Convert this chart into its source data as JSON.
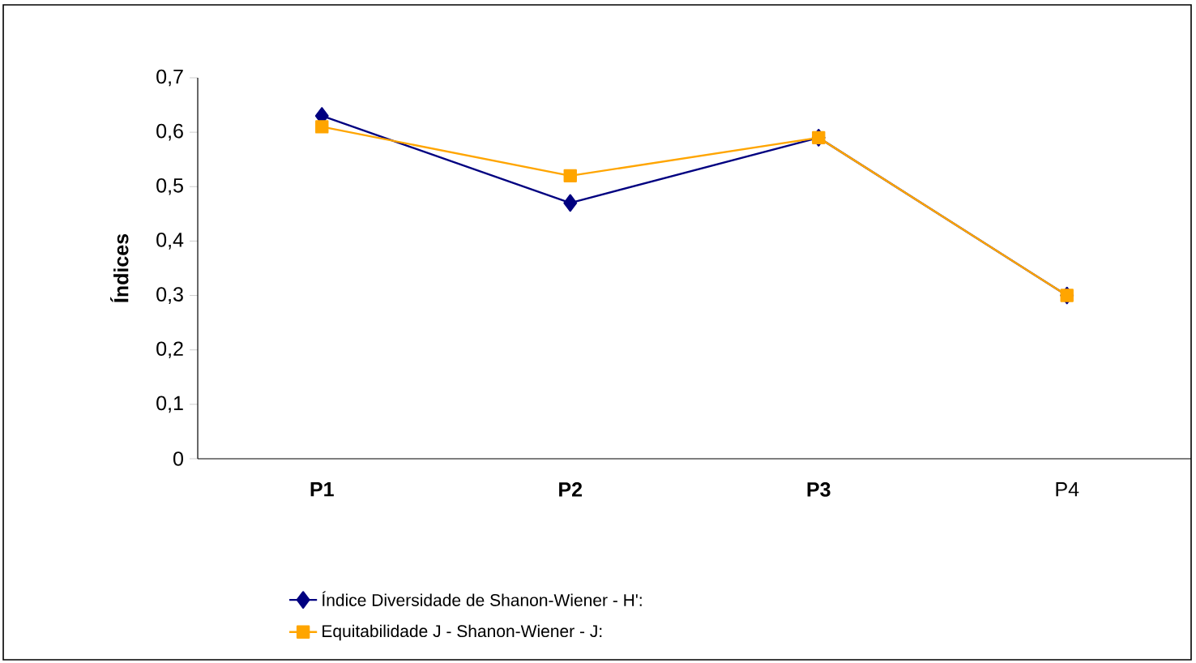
{
  "chart_data": {
    "type": "line",
    "ylabel": "**Índices**",
    "categories": [
      "**P1**",
      "**P2**",
      "**P3**",
      "P4"
    ],
    "series": [
      {
        "name": "Índice Diversidade de Shanon-Wiener - H':",
        "color": "#000080",
        "marker": "diamond",
        "values": [
          0.63,
          0.47,
          0.59,
          0.3
        ]
      },
      {
        "name": "Equitabilidade J  - Shanon-Wiener - J:",
        "color": "#ffa500",
        "marker": "square",
        "values": [
          0.61,
          0.52,
          0.59,
          0.3
        ]
      }
    ],
    "ylim": [
      0,
      0.7
    ],
    "yticks": [
      {
        "value": 0,
        "label": "0"
      },
      {
        "value": 0.1,
        "label": "0,1"
      },
      {
        "value": 0.2,
        "label": "0,2"
      },
      {
        "value": 0.3,
        "label": "0,3"
      },
      {
        "value": 0.4,
        "label": "0,4"
      },
      {
        "value": 0.5,
        "label": "0,5"
      },
      {
        "value": 0.6,
        "label": "0,6"
      },
      {
        "value": 0.7,
        "label": "0,7"
      }
    ],
    "grid": false,
    "legend": "bottom",
    "line_style": "solid"
  }
}
